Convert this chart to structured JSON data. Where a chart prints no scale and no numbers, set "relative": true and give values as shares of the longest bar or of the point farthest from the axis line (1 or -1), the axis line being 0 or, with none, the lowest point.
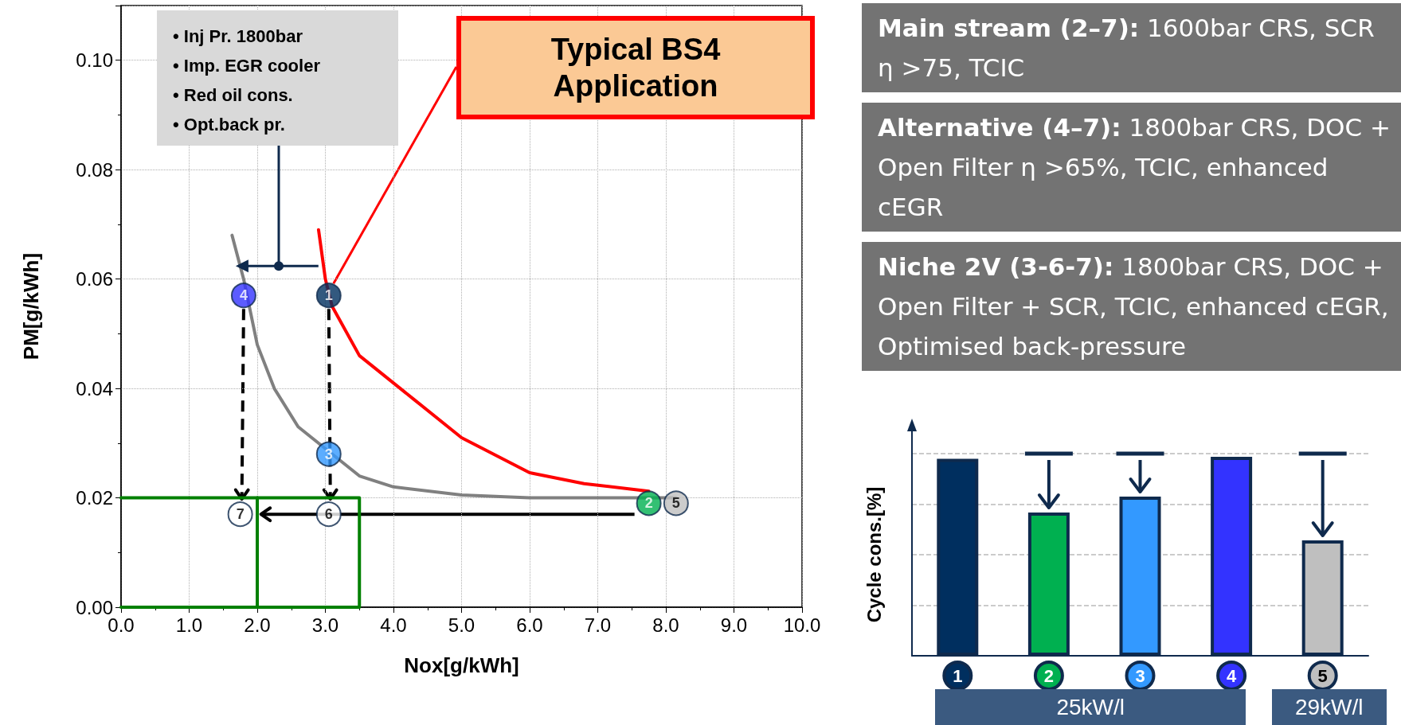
{
  "chart_data": [
    {
      "type": "line",
      "xlabel": "Nox[g/kWh]",
      "ylabel": "PM[g/kWh]",
      "xlim": [
        0,
        10
      ],
      "ylim": [
        0,
        0.11
      ],
      "xticks": [
        {
          "value": 0,
          "label": "0.0"
        },
        {
          "value": 1,
          "label": "1.0"
        },
        {
          "value": 2,
          "label": "2.0"
        },
        {
          "value": 3,
          "label": "3.0"
        },
        {
          "value": 4,
          "label": "4.0"
        },
        {
          "value": 5,
          "label": "5.0"
        },
        {
          "value": 6,
          "label": "6.0"
        },
        {
          "value": 7,
          "label": "7.0"
        },
        {
          "value": 8,
          "label": "8.0"
        },
        {
          "value": 9,
          "label": "9.0"
        },
        {
          "value": 10,
          "label": "10.0"
        }
      ],
      "yticks": [
        {
          "value": 0,
          "label": "0.00"
        },
        {
          "value": 0.02,
          "label": "0.02"
        },
        {
          "value": 0.04,
          "label": "0.04"
        },
        {
          "value": 0.06,
          "label": "0.06"
        },
        {
          "value": 0.08,
          "label": "0.08"
        },
        {
          "value": 0.1,
          "label": "0.10"
        }
      ],
      "grid": true,
      "series": [
        {
          "type": "line",
          "color": "#008000",
          "marker": "none",
          "x": [
            0,
            3.5,
            3.5,
            0
          ],
          "values": [
            0.02,
            0.02,
            0,
            0
          ]
        },
        {
          "type": "line",
          "color": "#008000",
          "marker": "none",
          "x": [
            2,
            2
          ],
          "values": [
            0,
            0.02
          ]
        },
        {
          "type": "line",
          "color": "#808080",
          "marker": "none",
          "x": [
            1.63,
            1.8,
            2.0,
            2.25,
            2.6,
            2.8,
            3.5,
            4.0,
            5.0,
            6.0,
            7.75,
            8.15
          ],
          "values": [
            0.068,
            0.06,
            0.048,
            0.04,
            0.033,
            0.031,
            0.024,
            0.022,
            0.0205,
            0.02,
            0.02,
            0.02
          ]
        },
        {
          "type": "line",
          "color": "#ff0000",
          "marker": "none",
          "x": [
            2.9,
            3.0,
            3.1,
            3.5,
            4.3,
            5.0,
            6.0,
            6.8,
            7.75
          ],
          "values": [
            0.069,
            0.06,
            0.055,
            0.046,
            0.038,
            0.031,
            0.0246,
            0.0226,
            0.0212
          ]
        },
        {
          "type": "scatter",
          "name": "1",
          "marker": "circle",
          "color": "#002f5f",
          "x": [
            3.05
          ],
          "values": [
            0.057
          ]
        },
        {
          "type": "scatter",
          "name": "2",
          "marker": "circle",
          "color": "#00b050",
          "x": [
            7.75
          ],
          "values": [
            0.019
          ]
        },
        {
          "type": "scatter",
          "name": "3",
          "marker": "circle",
          "color": "#3399ff",
          "x": [
            3.05
          ],
          "values": [
            0.028
          ]
        },
        {
          "type": "scatter",
          "name": "4",
          "marker": "circle",
          "color": "#3333ff",
          "x": [
            1.8
          ],
          "values": [
            0.057
          ]
        },
        {
          "type": "scatter",
          "name": "5",
          "marker": "circle",
          "color": "#bfbfbf",
          "x": [
            8.15
          ],
          "values": [
            0.019
          ]
        },
        {
          "type": "scatter",
          "name": "6",
          "marker": "circle",
          "color": "#ffffff",
          "x": [
            3.05
          ],
          "values": [
            0.017
          ]
        },
        {
          "type": "scatter",
          "name": "7",
          "marker": "circle",
          "color": "#ffffff",
          "x": [
            1.75
          ],
          "values": [
            0.017
          ]
        }
      ],
      "annotations": [
        "• Inj Pr. 1800bar",
        "• Imp. EGR cooler",
        "• Red oil cons.",
        "• Opt.back pr.",
        "Typical BS4 Application"
      ]
    },
    {
      "type": "bar",
      "ylabel": "Cycle cons.[%]",
      "relative": true,
      "grid": "y",
      "categories": [
        "1",
        "2",
        "3",
        "4",
        "5"
      ],
      "values": [
        0.99,
        0.72,
        0.8,
        1,
        0.58
      ],
      "colors": [
        "#002f5f",
        "#00b050",
        "#3399ff",
        "#3333ff",
        "#bfbfbf"
      ],
      "annotations": [
        "25kW/l",
        "29kW/l"
      ]
    },
    {
      "type": "other",
      "annotations": [
        "Main stream (2–7): 1600bar CRS, SCR η >75, TCIC",
        "Alternative (4–7): 1800bar CRS, DOC + Open Filter η >65%, TCIC, enhanced cEGR",
        "Niche 2V (3-6-7): 1800bar CRS, DOC + Open Filter + SCR, TCIC, enhanced cEGR, Optimised back-pressure"
      ]
    }
  ]
}
